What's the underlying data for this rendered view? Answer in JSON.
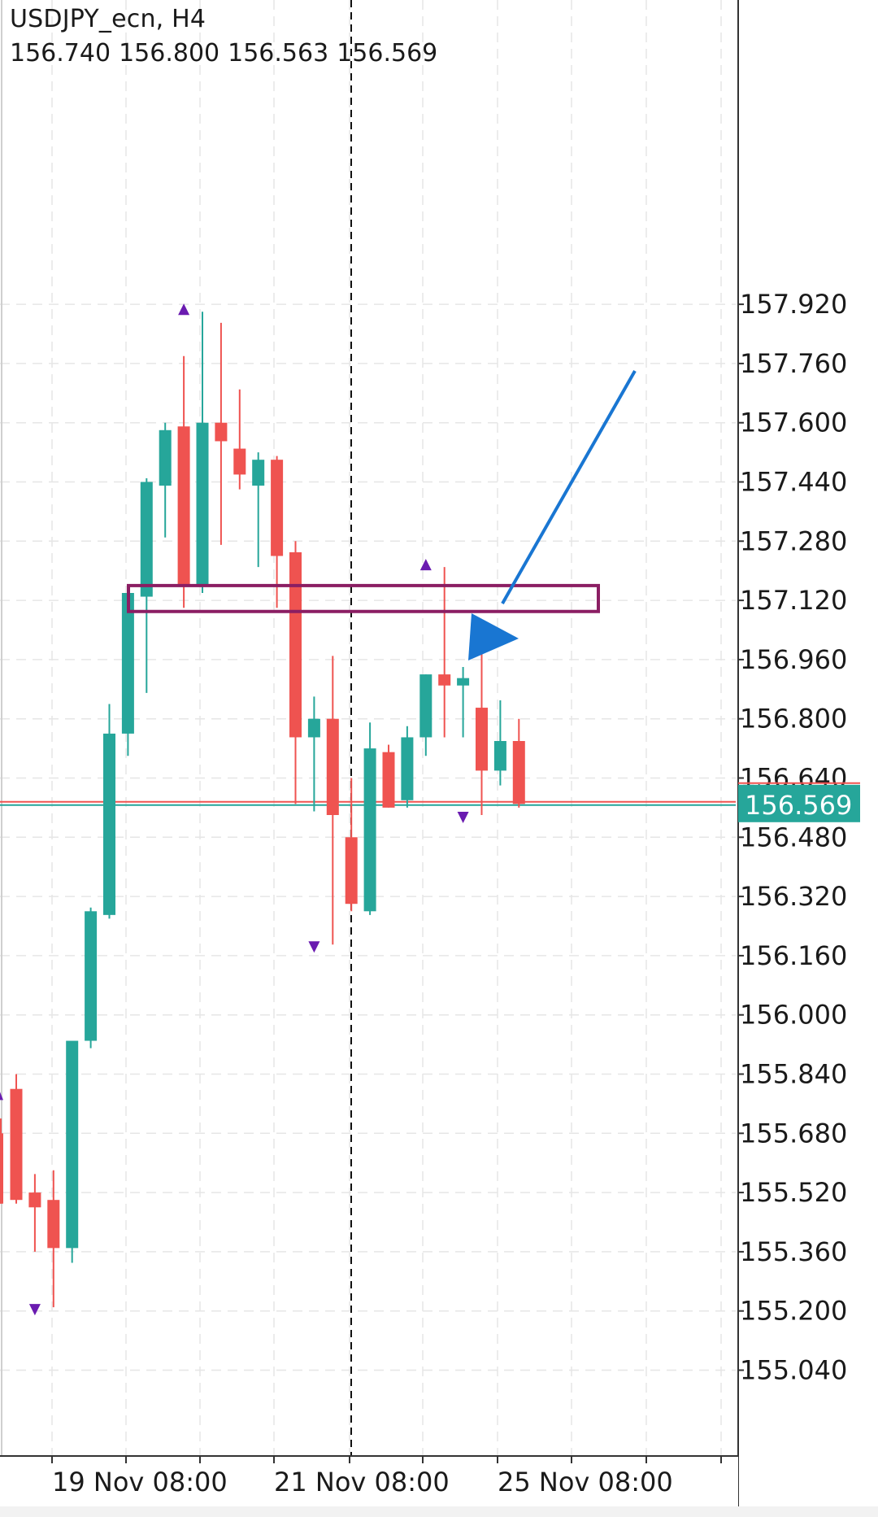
{
  "header": {
    "symbol": "USDJPY_ecn, H4",
    "ohlc": [
      "156.740",
      "156.800",
      "156.563",
      "156.569"
    ]
  },
  "colors": {
    "bull": "#26a69a",
    "bear": "#ef5350",
    "arrow_marker": "#6a1bb0",
    "zone": "#8b1e63",
    "trend_arrow": "#1976d2",
    "price_label_bg": "#26a69a",
    "grid": "#e6e6e6"
  },
  "chart_data": {
    "type": "candlestick",
    "symbol": "USDJPY_ecn",
    "timeframe": "H4",
    "ylim": [
      154.94,
      158.06
    ],
    "y_ticks": [
      "157.920",
      "157.760",
      "157.600",
      "157.440",
      "157.280",
      "157.120",
      "156.960",
      "156.800",
      "156.640",
      "156.480",
      "156.320",
      "156.160",
      "156.000",
      "155.840",
      "155.680",
      "155.520",
      "155.360",
      "155.200",
      "155.040"
    ],
    "x_tick_labels": [
      "19 Nov 08:00",
      "21 Nov 08:00",
      "25 Nov 08:00"
    ],
    "current_price": "156.569",
    "candles": [
      {
        "o": 155.8,
        "h": 155.84,
        "l": 155.49,
        "c": 155.5
      },
      {
        "o": 155.52,
        "h": 155.57,
        "l": 155.36,
        "c": 155.48
      },
      {
        "o": 155.5,
        "h": 155.58,
        "l": 155.21,
        "c": 155.37
      },
      {
        "o": 155.37,
        "h": 155.9,
        "l": 155.33,
        "c": 155.93
      },
      {
        "o": 155.93,
        "h": 156.29,
        "l": 155.91,
        "c": 156.28
      },
      {
        "o": 156.27,
        "h": 156.84,
        "l": 156.26,
        "c": 156.76
      },
      {
        "o": 156.76,
        "h": 157.16,
        "l": 156.7,
        "c": 157.14
      },
      {
        "o": 157.13,
        "h": 157.45,
        "l": 156.87,
        "c": 157.44
      },
      {
        "o": 157.43,
        "h": 157.6,
        "l": 157.29,
        "c": 157.58
      },
      {
        "o": 157.59,
        "h": 157.78,
        "l": 157.1,
        "c": 157.16
      },
      {
        "o": 157.16,
        "h": 157.9,
        "l": 157.14,
        "c": 157.6
      },
      {
        "o": 157.6,
        "h": 157.87,
        "l": 157.27,
        "c": 157.55
      },
      {
        "o": 157.53,
        "h": 157.69,
        "l": 157.42,
        "c": 157.46
      },
      {
        "o": 157.43,
        "h": 157.52,
        "l": 157.21,
        "c": 157.5
      },
      {
        "o": 157.5,
        "h": 157.51,
        "l": 157.1,
        "c": 157.24
      },
      {
        "o": 157.25,
        "h": 157.28,
        "l": 156.57,
        "c": 156.75
      },
      {
        "o": 156.75,
        "h": 156.86,
        "l": 156.55,
        "c": 156.8
      },
      {
        "o": 156.8,
        "h": 156.97,
        "l": 156.19,
        "c": 156.54
      },
      {
        "o": 156.48,
        "h": 156.64,
        "l": 156.28,
        "c": 156.3
      },
      {
        "o": 156.28,
        "h": 156.79,
        "l": 156.27,
        "c": 156.72
      },
      {
        "o": 156.71,
        "h": 156.73,
        "l": 156.56,
        "c": 156.56
      },
      {
        "o": 156.58,
        "h": 156.78,
        "l": 156.56,
        "c": 156.75
      },
      {
        "o": 156.75,
        "h": 156.92,
        "l": 156.7,
        "c": 156.92
      },
      {
        "o": 156.92,
        "h": 157.21,
        "l": 156.75,
        "c": 156.89
      },
      {
        "o": 156.89,
        "h": 156.94,
        "l": 156.75,
        "c": 156.91
      },
      {
        "o": 156.83,
        "h": 157.0,
        "l": 156.54,
        "c": 156.66
      },
      {
        "o": 156.66,
        "h": 156.85,
        "l": 156.62,
        "c": 156.74
      },
      {
        "o": 156.74,
        "h": 156.8,
        "l": 156.56,
        "c": 156.57
      }
    ],
    "fractal_markers": [
      {
        "candle": 1,
        "dir": "down",
        "price": 155.21
      },
      {
        "candle": 9,
        "dir": "up",
        "price": 157.9
      },
      {
        "candle": 16,
        "dir": "down",
        "price": 156.19
      },
      {
        "candle": 22,
        "dir": "up",
        "price": 157.21
      },
      {
        "candle": 24,
        "dir": "down",
        "price": 156.54
      }
    ],
    "resistance_zone": {
      "price_top": 157.16,
      "price_bottom": 157.09
    },
    "trend_arrow": {
      "from_price": 157.74,
      "to_price": 157.05
    }
  }
}
